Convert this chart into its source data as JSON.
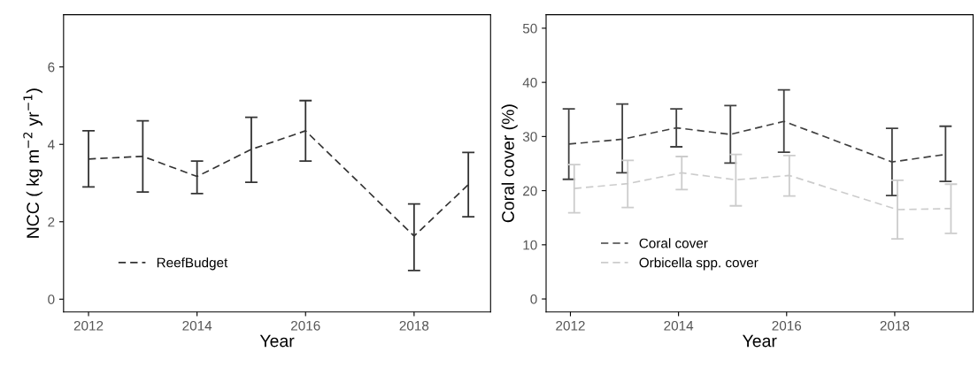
{
  "chart_data": [
    {
      "type": "line",
      "xlabel": "Year",
      "ylabel": "NCC ( kg m$^{−2}$ yr$^{−1}$)",
      "xlim": [
        2011.54,
        2019.41
      ],
      "xticks": [
        2012,
        2014,
        2016,
        2018
      ],
      "ylim": [
        -0.33,
        7.35
      ],
      "yticks": [
        0,
        2,
        4,
        6
      ],
      "grid": false,
      "legend": "bottom left",
      "line_style": "dashed",
      "marker": "none",
      "series": [
        {
          "name": "ReefBudget",
          "color": "#333333",
          "x": [
            2012,
            2013,
            2014,
            2015,
            2016,
            2018,
            2019
          ],
          "values": [
            3.62,
            3.69,
            3.17,
            3.87,
            4.35,
            1.63,
            2.96
          ],
          "errors": [
            [
              2.9,
              4.35
            ],
            [
              2.77,
              4.61
            ],
            [
              2.73,
              3.57
            ],
            [
              3.02,
              4.7
            ],
            [
              3.57,
              5.13
            ],
            [
              0.74,
              2.46
            ],
            [
              2.13,
              3.79
            ]
          ]
        }
      ]
    },
    {
      "type": "line",
      "xlabel": "Year",
      "ylabel": "Coral cover (%)",
      "xlim": [
        2011.55,
        2019.45
      ],
      "xticks": [
        2012,
        2014,
        2016,
        2018
      ],
      "ylim": [
        -2.4,
        52.5
      ],
      "yticks": [
        0,
        10,
        20,
        30,
        40,
        50
      ],
      "grid": false,
      "legend": "bottom left",
      "line_style": "dashed",
      "marker": "none",
      "series": [
        {
          "name": "Coral cover",
          "color": "#404040",
          "x": [
            2011.97,
            2012.96,
            2013.96,
            2014.96,
            2015.95,
            2017.95,
            2018.94
          ],
          "values": [
            28.6,
            29.5,
            31.6,
            30.4,
            32.8,
            25.3,
            26.7
          ],
          "errors": [
            [
              22.1,
              35.1
            ],
            [
              23.3,
              36.0
            ],
            [
              28.1,
              35.1
            ],
            [
              25.1,
              35.7
            ],
            [
              27.1,
              38.6
            ],
            [
              19.1,
              31.5
            ],
            [
              21.7,
              31.9
            ]
          ]
        },
        {
          "name": "Orbicella spp. cover",
          "color": "#cccccc",
          "x": [
            2012.07,
            2013.06,
            2014.06,
            2015.06,
            2016.05,
            2018.05,
            2019.04
          ],
          "values": [
            20.4,
            21.3,
            23.3,
            22.0,
            22.8,
            16.5,
            16.7
          ],
          "errors": [
            [
              15.9,
              24.8
            ],
            [
              16.9,
              25.6
            ],
            [
              20.2,
              26.3
            ],
            [
              17.2,
              26.7
            ],
            [
              19.0,
              26.5
            ],
            [
              11.1,
              21.9
            ],
            [
              12.1,
              21.2
            ]
          ]
        }
      ]
    }
  ]
}
